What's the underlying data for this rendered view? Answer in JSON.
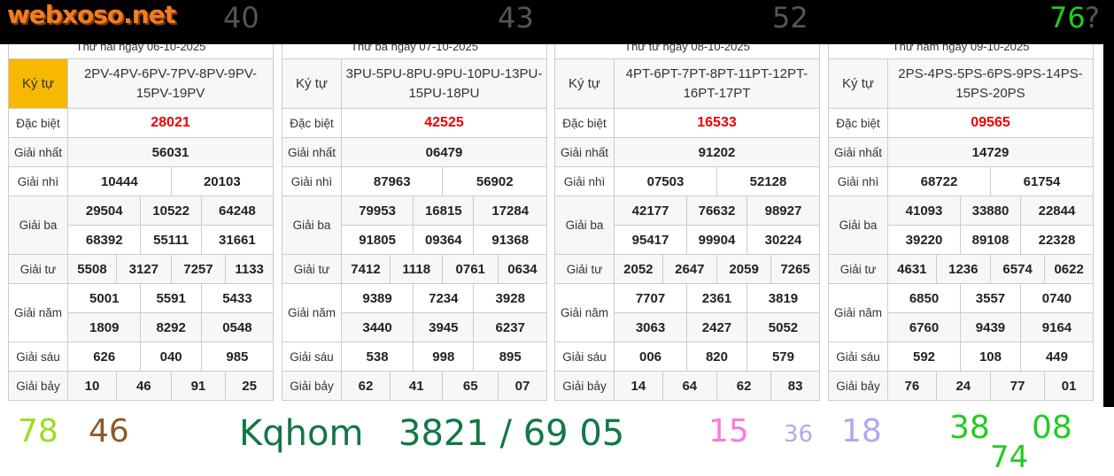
{
  "logo_text": "webxoso.net",
  "tables": [
    {
      "date": "Thứ hai ngày 06-10-2025",
      "kytu_label": "Ký tự",
      "kytu": "2PV-4PV-6PV-7PV-8PV-9PV-15PV-19PV",
      "prizes": {
        "Đặc biệt": [
          "28021"
        ],
        "Giải nhất": [
          "56031"
        ],
        "Giải nhì": [
          "10444",
          "20103"
        ],
        "Giải ba": [
          "29504",
          "10522",
          "64248",
          "68392",
          "55111",
          "31661"
        ],
        "Giải tư": [
          "5508",
          "3127",
          "7257",
          "1133"
        ],
        "Giải năm": [
          "5001",
          "5591",
          "5433",
          "1809",
          "8292",
          "0548"
        ],
        "Giải sáu": [
          "626",
          "040",
          "985"
        ],
        "Giải bảy": [
          "10",
          "46",
          "91",
          "25"
        ]
      }
    },
    {
      "date": "Thứ ba ngày 07-10-2025",
      "kytu_label": "Ký tự",
      "kytu": "3PU-5PU-8PU-9PU-10PU-13PU-15PU-18PU",
      "prizes": {
        "Đặc biệt": [
          "42525"
        ],
        "Giải nhất": [
          "06479"
        ],
        "Giải nhì": [
          "87963",
          "56902"
        ],
        "Giải ba": [
          "79953",
          "16815",
          "17284",
          "91805",
          "09364",
          "91368"
        ],
        "Giải tư": [
          "7412",
          "1118",
          "0761",
          "0634"
        ],
        "Giải năm": [
          "9389",
          "7234",
          "3928",
          "3440",
          "3945",
          "6237"
        ],
        "Giải sáu": [
          "538",
          "998",
          "895"
        ],
        "Giải bảy": [
          "62",
          "41",
          "65",
          "07"
        ]
      }
    },
    {
      "date": "Thứ tư ngày 08-10-2025",
      "kytu_label": "Ký tự",
      "kytu": "4PT-6PT-7PT-8PT-11PT-12PT-16PT-17PT",
      "prizes": {
        "Đặc biệt": [
          "16533"
        ],
        "Giải nhất": [
          "91202"
        ],
        "Giải nhì": [
          "07503",
          "52128"
        ],
        "Giải ba": [
          "42177",
          "76632",
          "98927",
          "95417",
          "99904",
          "30224"
        ],
        "Giải tư": [
          "2052",
          "2647",
          "2059",
          "7265"
        ],
        "Giải năm": [
          "7707",
          "2361",
          "3819",
          "3063",
          "2427",
          "5052"
        ],
        "Giải sáu": [
          "006",
          "820",
          "579"
        ],
        "Giải bảy": [
          "14",
          "64",
          "62",
          "83"
        ]
      }
    },
    {
      "date": "Thứ năm ngày 09-10-2025",
      "kytu_label": "Ký tự",
      "kytu": "2PS-4PS-5PS-6PS-9PS-14PS-15PS-20PS",
      "prizes": {
        "Đặc biệt": [
          "09565"
        ],
        "Giải nhất": [
          "14729"
        ],
        "Giải nhì": [
          "68722",
          "61754"
        ],
        "Giải ba": [
          "41093",
          "33880",
          "22844",
          "39220",
          "89108",
          "22328"
        ],
        "Giải tư": [
          "4631",
          "1236",
          "6574",
          "0622"
        ],
        "Giải năm": [
          "6850",
          "3557",
          "0740",
          "6760",
          "9439",
          "9164"
        ],
        "Giải sáu": [
          "592",
          "108",
          "449"
        ],
        "Giải bảy": [
          "76",
          "24",
          "77",
          "01"
        ]
      }
    }
  ],
  "annotations": [
    {
      "text": "40",
      "color": "#555555"
    },
    {
      "text": "43",
      "color": "#555555"
    },
    {
      "text": "52",
      "color": "#555555"
    },
    {
      "text": "76",
      "color": "#22cc22"
    },
    {
      "text": "?",
      "color": "#555555"
    },
    {
      "text": "78",
      "color": "#99dd22"
    },
    {
      "text": "46",
      "color": "#8b5a2b"
    },
    {
      "text": "15",
      "color": "#ff77dd"
    },
    {
      "text": "18",
      "color": "#b0a8f0"
    },
    {
      "text": "36",
      "color": "#b0a8f0"
    },
    {
      "text": "38",
      "color": "#22cc22"
    },
    {
      "text": "08",
      "color": "#22cc22"
    },
    {
      "text": "74",
      "color": "#22cc22"
    },
    {
      "text": "Kqhom",
      "color": "#117744"
    },
    {
      "text": "3821 / 69 05",
      "color": "#117744"
    }
  ]
}
